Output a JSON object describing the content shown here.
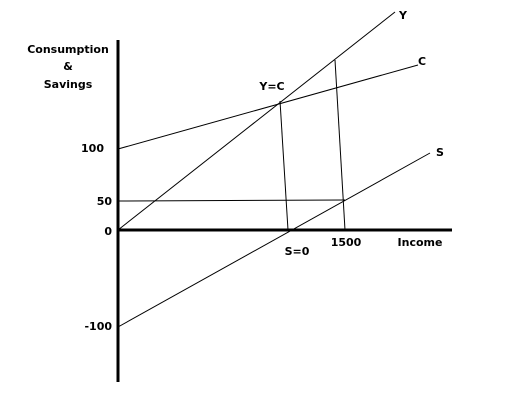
{
  "axes": {
    "y_label_lines": [
      "Consumption",
      "&",
      "Savings"
    ],
    "x_label": "Income",
    "y_ticks": [
      100,
      50,
      0,
      -100
    ],
    "x_ticks": [
      1500
    ]
  },
  "curves": [
    {
      "label": "Y"
    },
    {
      "label": "C"
    },
    {
      "label": "S"
    }
  ],
  "points": [
    "Y=C",
    "S=0"
  ]
}
